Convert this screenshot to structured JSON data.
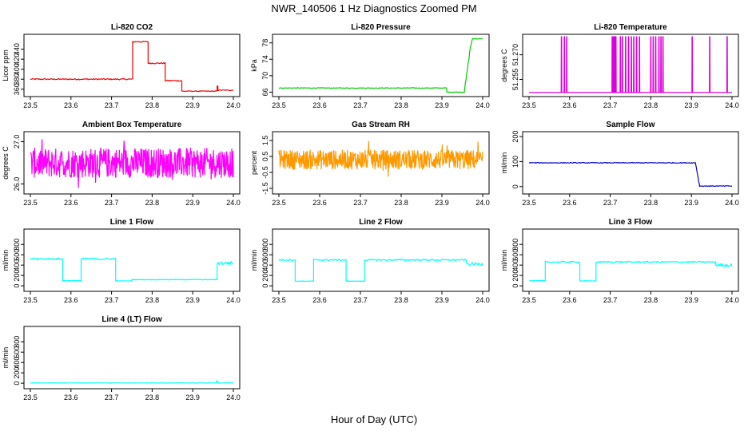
{
  "figure": {
    "title": "NWR_140506  1 Hz Diagnostics Zoomed PM",
    "xlabel": "Hour of Day (UTC)"
  },
  "chart_data": [
    {
      "type": "line",
      "title": "Li-820 CO2",
      "ylabel": "Licor ppm",
      "color": "#ee0000",
      "xlim": [
        23.5,
        24.0
      ],
      "ylim": [
        350,
        465
      ],
      "xticks": [
        "23.5",
        "23.6",
        "23.7",
        "23.8",
        "23.9",
        "24.0"
      ],
      "yticks": [
        "360",
        "380",
        "400",
        "420",
        "440"
      ],
      "segments": [
        {
          "x0": 23.5,
          "x1": 23.752,
          "y": 380,
          "noise": 1.2
        },
        {
          "x0": 23.752,
          "x1": 23.79,
          "y": 455,
          "noise": 1.2
        },
        {
          "x0": 23.79,
          "x1": 23.832,
          "y": 412,
          "noise": 1.2
        },
        {
          "x0": 23.832,
          "x1": 23.873,
          "y": 377,
          "noise": 1.2
        },
        {
          "x0": 23.873,
          "x1": 23.96,
          "y": 356,
          "noise": 0.8
        },
        {
          "x0": 23.96,
          "x1": 23.962,
          "y": 366,
          "noise": 0.5
        },
        {
          "x0": 23.962,
          "x1": 24.0,
          "y": 358,
          "noise": 0.8
        }
      ]
    },
    {
      "type": "line",
      "title": "Li-820 Pressure",
      "ylabel": "kPa",
      "color": "#00cc00",
      "xlim": [
        23.5,
        24.0
      ],
      "ylim": [
        65.5,
        79.5
      ],
      "xticks": [
        "23.5",
        "23.6",
        "23.7",
        "23.8",
        "23.9",
        "24.0"
      ],
      "yticks": [
        "66",
        "70",
        "74",
        "78"
      ],
      "segments": [
        {
          "x0": 23.5,
          "x1": 23.912,
          "y": 67,
          "noise": 0.08
        },
        {
          "x0": 23.912,
          "x1": 23.955,
          "y": 66,
          "noise": 0.08
        },
        {
          "x0": 23.955,
          "x1": 23.97,
          "y0": 66,
          "y1": 77,
          "noise": 0.4
        },
        {
          "x0": 23.97,
          "x1": 23.975,
          "y0": 77,
          "y1": 79,
          "noise": 0.1
        },
        {
          "x0": 23.975,
          "x1": 24.0,
          "y": 79,
          "noise": 0.08
        }
      ]
    },
    {
      "type": "line",
      "title": "Li-820 Temperature",
      "ylabel": "degrees C",
      "color": "#dd00dd",
      "xlim": [
        23.5,
        24.0
      ],
      "ylim": [
        51.246,
        51.281
      ],
      "xticks": [
        "23.5",
        "23.6",
        "23.7",
        "23.8",
        "23.9",
        "24.0"
      ],
      "yticks": [
        "51.255",
        "51.270"
      ],
      "baseline": 51.247,
      "spike_to": 51.281,
      "spikes": [
        23.58,
        23.587,
        23.593,
        23.705,
        23.708,
        23.711,
        23.714,
        23.725,
        23.73,
        23.738,
        23.745,
        23.752,
        23.758,
        23.765,
        23.772,
        23.8,
        23.806,
        23.812,
        23.82,
        23.825,
        23.83,
        23.902,
        23.945,
        23.988
      ]
    },
    {
      "type": "line",
      "title": "Ambient Box Temperature",
      "ylabel": "degrees C",
      "color": "#ff00ff",
      "xlim": [
        23.5,
        24.0
      ],
      "ylim": [
        25.82,
        27.18
      ],
      "xticks": [
        "23.5",
        "23.6",
        "23.7",
        "23.8",
        "23.9",
        "24.0"
      ],
      "yticks": [
        "26.0",
        "27.0"
      ],
      "noise_band": {
        "center": 26.5,
        "half_range": 0.35,
        "outliers": 0.6
      }
    },
    {
      "type": "line",
      "title": "Gas Stream RH",
      "ylabel": "percent",
      "color": "#ff9900",
      "xlim": [
        23.5,
        24.0
      ],
      "ylim": [
        -1.7,
        1.9
      ],
      "xticks": [
        "23.5",
        "23.6",
        "23.7",
        "23.8",
        "23.9",
        "24.0"
      ],
      "yticks": [
        "-1.5",
        "-0.5",
        "0.5",
        "1.5"
      ],
      "noise_band": {
        "center": 0.3,
        "half_range": 0.6,
        "outliers": 1.2
      }
    },
    {
      "type": "line",
      "title": "Sample Flow",
      "ylabel": "ml/min",
      "color": "#0000cc",
      "xlim": [
        23.5,
        24.0
      ],
      "ylim": [
        -20,
        210
      ],
      "xticks": [
        "23.5",
        "23.6",
        "23.7",
        "23.8",
        "23.9",
        "24.0"
      ],
      "yticks": [
        "0",
        "100",
        "200"
      ],
      "segments": [
        {
          "x0": 23.5,
          "x1": 23.91,
          "y": 95,
          "noise": 1.5
        },
        {
          "x0": 23.91,
          "x1": 23.92,
          "y0": 95,
          "y1": 5,
          "noise": 4
        },
        {
          "x0": 23.92,
          "x1": 24.0,
          "y": 2,
          "noise": 1.5
        }
      ]
    },
    {
      "type": "line",
      "title": "Line 1 Flow",
      "ylabel": "ml/min",
      "color": "#00ffff",
      "xlim": [
        23.5,
        24.0
      ],
      "ylim": [
        -60,
        1050
      ],
      "xticks": [
        "23.5",
        "23.6",
        "23.7",
        "23.8",
        "23.9",
        "24.0"
      ],
      "yticks": [
        "0",
        "200",
        "400",
        "600",
        "800"
      ],
      "segments": [
        {
          "x0": 23.5,
          "x1": 23.58,
          "y": 520,
          "noise": 18
        },
        {
          "x0": 23.58,
          "x1": 23.625,
          "y": 100,
          "noise": 4
        },
        {
          "x0": 23.625,
          "x1": 23.71,
          "y": 520,
          "noise": 18
        },
        {
          "x0": 23.71,
          "x1": 23.75,
          "y": 95,
          "noise": 4
        },
        {
          "x0": 23.75,
          "x1": 23.96,
          "y": 120,
          "noise": 6
        },
        {
          "x0": 23.96,
          "x1": 24.0,
          "y": 440,
          "noise": 35
        }
      ]
    },
    {
      "type": "line",
      "title": "Line 2 Flow",
      "ylabel": "ml/min",
      "color": "#00ffff",
      "xlim": [
        23.5,
        24.0
      ],
      "ylim": [
        -60,
        1050
      ],
      "xticks": [
        "23.5",
        "23.6",
        "23.7",
        "23.8",
        "23.9",
        "24.0"
      ],
      "yticks": [
        "0",
        "200",
        "400",
        "600",
        "800"
      ],
      "segments": [
        {
          "x0": 23.5,
          "x1": 23.54,
          "y": 500,
          "noise": 15
        },
        {
          "x0": 23.54,
          "x1": 23.585,
          "y": 90,
          "noise": 4
        },
        {
          "x0": 23.585,
          "x1": 23.665,
          "y": 500,
          "noise": 15
        },
        {
          "x0": 23.665,
          "x1": 23.71,
          "y": 90,
          "noise": 4
        },
        {
          "x0": 23.71,
          "x1": 23.96,
          "y": 500,
          "noise": 15
        },
        {
          "x0": 23.96,
          "x1": 24.0,
          "y": 420,
          "noise": 30
        }
      ]
    },
    {
      "type": "line",
      "title": "Line 3 Flow",
      "ylabel": "ml/min",
      "color": "#00ffff",
      "xlim": [
        23.5,
        24.0
      ],
      "ylim": [
        -60,
        1050
      ],
      "xticks": [
        "23.5",
        "23.6",
        "23.7",
        "23.8",
        "23.9",
        "24.0"
      ],
      "yticks": [
        "0",
        "200",
        "400",
        "600",
        "800"
      ],
      "segments": [
        {
          "x0": 23.5,
          "x1": 23.54,
          "y": 100,
          "noise": 4
        },
        {
          "x0": 23.54,
          "x1": 23.625,
          "y": 460,
          "noise": 14
        },
        {
          "x0": 23.625,
          "x1": 23.665,
          "y": 95,
          "noise": 4
        },
        {
          "x0": 23.665,
          "x1": 23.96,
          "y": 460,
          "noise": 14
        },
        {
          "x0": 23.96,
          "x1": 24.0,
          "y": 400,
          "noise": 30
        }
      ]
    },
    {
      "type": "line",
      "title": "Line 4 (LT) Flow",
      "ylabel": "ml/min",
      "color": "#00ffff",
      "xlim": [
        23.5,
        24.0
      ],
      "ylim": [
        -60,
        1050
      ],
      "xticks": [
        "23.5",
        "23.6",
        "23.7",
        "23.8",
        "23.9",
        "24.0"
      ],
      "yticks": [
        "0",
        "200",
        "400",
        "600",
        "800"
      ],
      "segments": [
        {
          "x0": 23.5,
          "x1": 23.958,
          "y": 5,
          "noise": 3
        },
        {
          "x0": 23.958,
          "x1": 23.962,
          "y": 40,
          "noise": 2
        },
        {
          "x0": 23.962,
          "x1": 24.0,
          "y": 5,
          "noise": 3
        }
      ]
    }
  ]
}
